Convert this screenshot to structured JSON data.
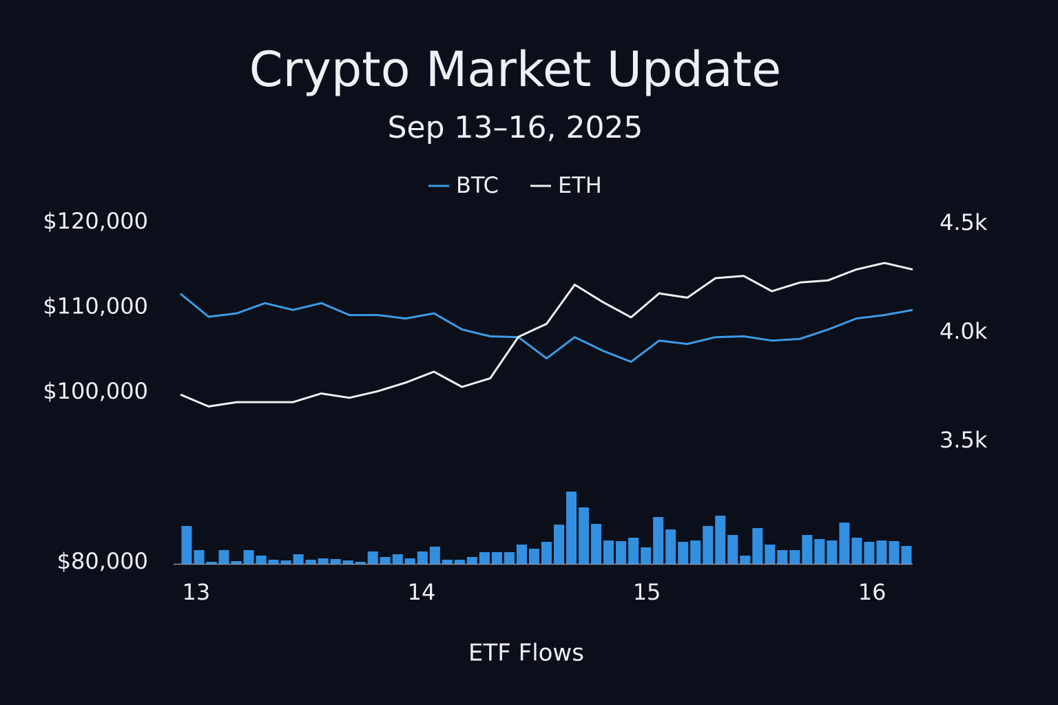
{
  "chart_data": {
    "type": "line",
    "title": "Crypto Market Update",
    "subtitle": "Sep 13–16, 2025",
    "x": [
      12.93,
      13.055,
      13.18,
      13.305,
      13.43,
      13.555,
      13.68,
      13.805,
      13.93,
      14.055,
      14.18,
      14.305,
      14.43,
      14.555,
      14.68,
      14.805,
      14.93,
      15.055,
      15.18,
      15.305,
      15.43,
      15.555,
      15.68,
      15.805,
      15.93,
      16.055,
      16.18
    ],
    "xlim": [
      12.93,
      16.18
    ],
    "xticks": [
      13,
      14,
      15,
      16
    ],
    "series": [
      {
        "name": "BTC",
        "color": "#3b9be6",
        "values": [
          111600,
          108900,
          109300,
          110500,
          109700,
          110500,
          109100,
          109100,
          108700,
          109300,
          107400,
          106600,
          106500,
          104000,
          106500,
          104900,
          103600,
          106100,
          105700,
          106500,
          106600,
          106100,
          106300,
          107400,
          108700,
          109100,
          109700
        ]
      },
      {
        "name": "ETH",
        "color": "#f0f0f0",
        "axis": "y2",
        "values": [
          3715,
          3660,
          3680,
          3680,
          3680,
          3720,
          3700,
          3730,
          3770,
          3820,
          3750,
          3790,
          3980,
          4040,
          4220,
          4140,
          4070,
          4180,
          4160,
          4250,
          4260,
          4190,
          4230,
          4240,
          4290,
          4320,
          4290
        ]
      }
    ],
    "ylim": [
      80000,
      120000
    ],
    "yticks": [
      {
        "value": 120000,
        "label": "$120,000"
      },
      {
        "value": 110000,
        "label": "$110,000"
      },
      {
        "value": 100000,
        "label": "$100,000"
      },
      {
        "value": 80000,
        "label": "$80,000"
      }
    ],
    "y2lim": [
      3500,
      4500
    ],
    "y2ticks": [
      {
        "value": 4500,
        "label": "4.5k"
      },
      {
        "value": 4000,
        "label": "4.0k"
      },
      {
        "value": 3500,
        "label": "3.5k"
      }
    ],
    "etf_flows": {
      "name": "ETF Flows",
      "color": "#3390e0",
      "values": [
        55,
        20,
        3,
        20,
        4,
        20,
        12,
        6,
        5,
        14,
        6,
        8,
        7,
        5,
        3,
        18,
        10,
        14,
        8,
        18,
        25,
        6,
        6,
        10,
        17,
        17,
        17,
        28,
        22,
        32,
        57,
        105,
        82,
        58,
        34,
        33,
        38,
        24,
        68,
        50,
        32,
        34,
        55,
        70,
        42,
        12,
        52,
        28,
        20,
        20,
        42,
        36,
        34,
        60,
        38,
        32,
        34,
        33,
        26
      ]
    },
    "legend": "top"
  }
}
